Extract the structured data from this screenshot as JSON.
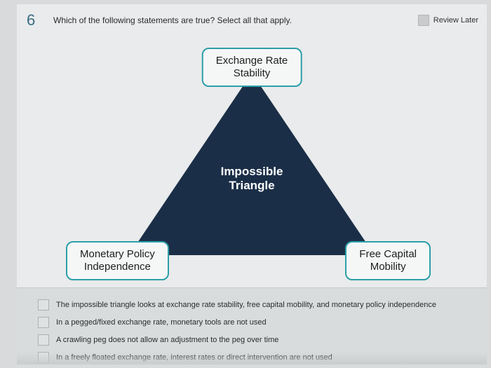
{
  "question": {
    "number": "6",
    "text": "Which of the following statements are true? Select all that apply.",
    "review_label": "Review Later"
  },
  "diagram": {
    "type": "infographic",
    "triangle_color": "#1b2e47",
    "triangle_label_line1": "Impossible",
    "triangle_label_line2": "Triangle",
    "vertex_border_color": "#2d9fa8",
    "vertex_bg": "#f5f7f7",
    "vertices": {
      "top": {
        "line1": "Exchange Rate",
        "line2": "Stability"
      },
      "left": {
        "line1": "Monetary Policy",
        "line2": "Independence"
      },
      "right": {
        "line1": "Free Capital",
        "line2": "Mobility"
      }
    }
  },
  "options": [
    "The impossible triangle looks at exchange rate stability, free capital mobility, and monetary policy independence",
    "In a pegged/fixed exchange rate, monetary tools are not used",
    "A crawling peg does not allow an adjustment to the peg over time",
    "In a freely floated exchange rate, interest rates or direct intervention are not used"
  ],
  "colors": {
    "page_bg": "#e9ebec",
    "outer_bg": "#d8dadb",
    "options_bg": "#d9dcdd",
    "qnum_color": "#3a6d85"
  }
}
